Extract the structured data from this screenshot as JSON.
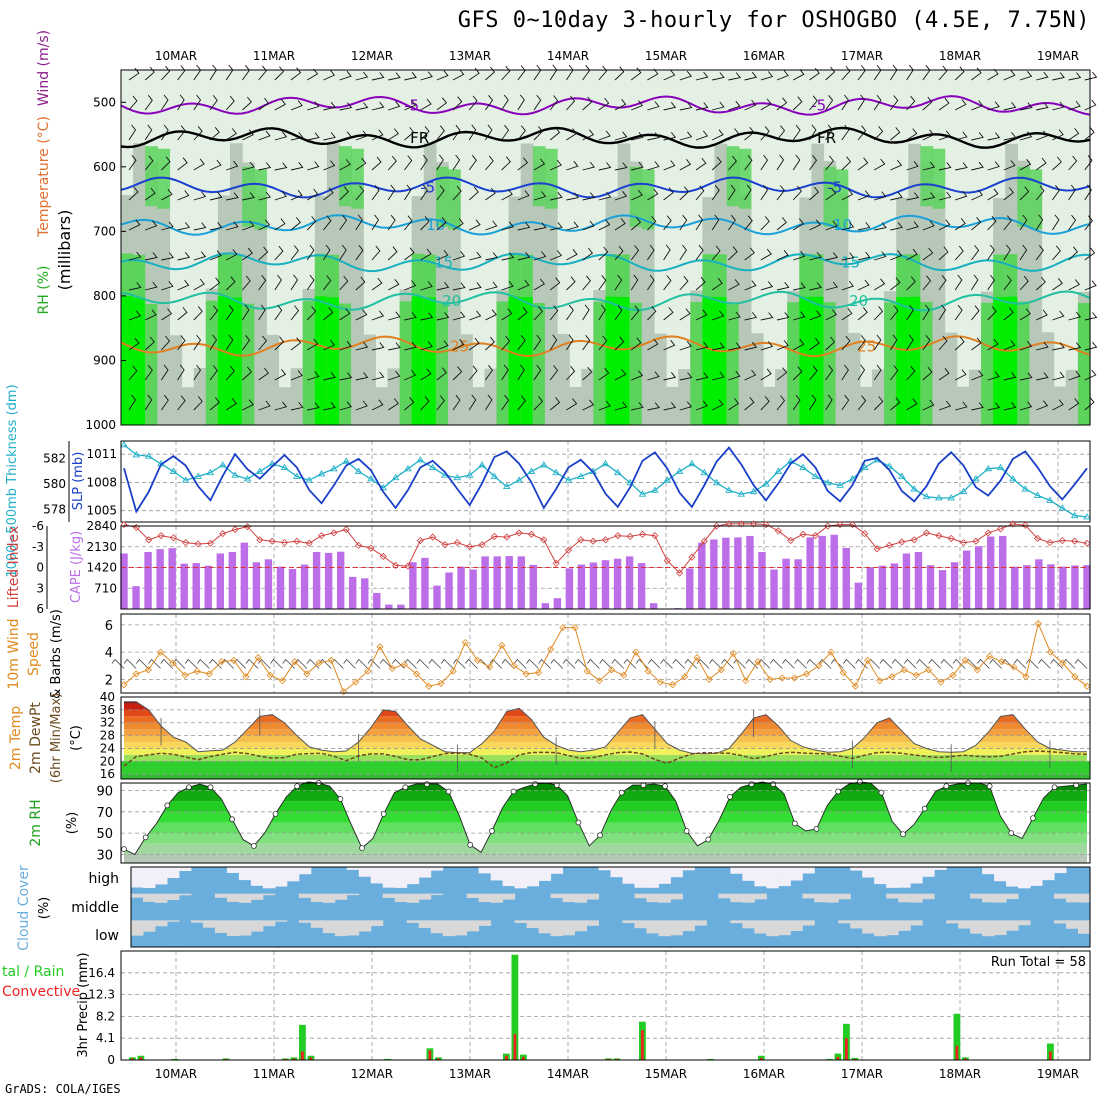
{
  "title": "GFS 0~10day 3-hourly for OSHOGBO (4.5E, 7.75N)",
  "credit": "GrADS: COLA/IGES",
  "colors": {
    "rh_light": "#e4f0e4",
    "rh_mid": "#b8c8b8",
    "rh_green": "#5cd45c",
    "rh_bright": "#00ee00",
    "purple": "#8800bb",
    "black": "#000000",
    "blue": "#1a40d0",
    "cyan": "#1aa0d8",
    "teal": "#20c0a0",
    "orange": "#e08020",
    "red": "#cc0000",
    "magenta": "#d0107a",
    "thick": "#20b0c8",
    "slp": "#1a3fc8",
    "lifted": "#d04040",
    "cape": "#bb6ee8",
    "wind10": "#e08a20",
    "cloud": "#6aaede",
    "cloud_empty": "#d8d8d8",
    "precip_total": "#22cc22",
    "precip_conv": "#ee2222"
  },
  "chart_data": [
    {
      "type": "heatmap",
      "id": "upper-air",
      "xlabel_top": [
        "10MAR",
        "11MAR",
        "12MAR",
        "13MAR",
        "14MAR",
        "15MAR",
        "16MAR",
        "17MAR",
        "18MAR",
        "19MAR"
      ],
      "ylabel_parts": [
        {
          "text": "RH (%)",
          "color": "#22aa22"
        },
        {
          "text": "Temperature (°C)",
          "color": "#e07030"
        },
        {
          "text": "Wind (m/s)",
          "color": "#8b1d8b"
        }
      ],
      "yaxis_title": "(millibars)",
      "y_ticks": [
        500,
        600,
        700,
        800,
        900,
        1000
      ],
      "ylim": [
        450,
        1000
      ],
      "isotherms": [
        {
          "label": "-5",
          "level": 505,
          "color": "#8800bb"
        },
        {
          "label": "FR",
          "level": 555,
          "color": "#000000"
        },
        {
          "label": "-5",
          "level": 632,
          "color": "#1a40d0"
        },
        {
          "label": "10",
          "level": 690,
          "color": "#1aa0d8"
        },
        {
          "label": "15",
          "level": 748,
          "color": "#17b0c0"
        },
        {
          "label": "20",
          "level": 808,
          "color": "#20c0a0"
        },
        {
          "label": "25",
          "level": 878,
          "color": "#e08020"
        }
      ],
      "contour_labels": [
        "-5",
        "FR",
        "-5",
        "10",
        "15",
        "20",
        "25"
      ]
    },
    {
      "type": "line",
      "id": "thickness-slp",
      "ylabel_left": "1000~500mb Thickness (dm)",
      "ylabel_right": "SLP (mb)",
      "left_ticks": [
        578,
        580,
        582
      ],
      "right_ticks": [
        1005,
        1008,
        1011
      ],
      "ylim_left": [
        577,
        583.4
      ],
      "ylim_right": [
        1003.8,
        1012.4
      ],
      "series": [
        {
          "id": "thickness",
          "values": [
            583.1,
            582.3,
            582.2,
            581.6,
            581.0,
            580.3,
            580.6,
            580.9,
            581.5,
            580.7,
            580.4,
            581.0,
            581.6,
            581.3,
            580.6,
            580.3,
            580.8,
            581.2,
            581.8,
            581.0,
            580.4,
            579.7,
            580.5,
            581.2,
            581.9,
            581.3,
            580.7,
            580.5,
            580.7,
            581.5,
            580.6,
            579.8,
            580.3,
            581.0,
            581.5,
            580.9,
            580.3,
            580.6,
            581.0,
            581.6,
            580.9,
            580.1,
            579.2,
            579.5,
            580.3,
            581.0,
            581.6,
            580.9,
            580.1,
            579.5,
            579.2,
            579.4,
            580.0,
            581.0,
            581.8,
            581.3,
            580.6,
            580.1,
            579.9,
            580.4,
            581.3,
            581.9,
            581.4,
            580.6,
            579.6,
            579.0,
            578.9,
            578.9,
            579.4,
            580.4,
            581.2,
            581.3,
            580.4,
            579.6,
            579.1,
            578.7,
            578.1,
            577.5,
            577.4
          ]
        },
        {
          "id": "slp",
          "values": [
            1009.5,
            1004.9,
            1007.0,
            1009.9,
            1010.8,
            1009.8,
            1007.6,
            1006.1,
            1008.7,
            1011.0,
            1009.4,
            1008.4,
            1009.7,
            1010.9,
            1009.6,
            1007.2,
            1005.8,
            1007.7,
            1009.8,
            1010.5,
            1009.3,
            1007.0,
            1005.3,
            1007.2,
            1009.6,
            1010.3,
            1009.1,
            1007.3,
            1005.6,
            1007.9,
            1010.7,
            1011.3,
            1010.0,
            1008.0,
            1005.3,
            1007.3,
            1009.6,
            1010.4,
            1009.1,
            1006.8,
            1005.4,
            1007.5,
            1010.3,
            1011.2,
            1009.5,
            1006.9,
            1005.4,
            1007.7,
            1010.2,
            1011.7,
            1009.9,
            1007.7,
            1006.1,
            1007.9,
            1010.0,
            1011.0,
            1009.6,
            1007.1,
            1006.0,
            1007.7,
            1010.3,
            1010.6,
            1009.3,
            1007.1,
            1006.0,
            1007.6,
            1010.0,
            1011.2,
            1009.8,
            1007.5,
            1006.6,
            1008.2,
            1010.5,
            1011.3,
            1009.6,
            1007.6,
            1006.2,
            1007.8,
            1009.5
          ]
        }
      ]
    },
    {
      "type": "bar",
      "id": "lifted-cape",
      "ylabel_left": "Lifted Index",
      "ylabel_right": "CAPE (J/kg)",
      "left_ticks": [
        "-6",
        "-3",
        "0",
        "3",
        "6"
      ],
      "right_ticks": [
        "2840",
        "2130",
        "1420",
        "710"
      ],
      "ylim_cape": [
        0,
        2840
      ],
      "ylim_li": [
        -6,
        6
      ],
      "cape": [
        1900,
        780,
        1950,
        2050,
        2080,
        1550,
        1570,
        1480,
        1900,
        1950,
        2270,
        1600,
        1700,
        1450,
        1370,
        1520,
        1950,
        1920,
        1960,
        1100,
        1050,
        550,
        150,
        150,
        1600,
        1750,
        800,
        1250,
        1450,
        1350,
        1800,
        1800,
        1810,
        1800,
        1510,
        200,
        370,
        1390,
        1520,
        1590,
        1670,
        1720,
        1800,
        1570,
        200,
        0,
        30,
        1390,
        2270,
        2380,
        2440,
        2450,
        2500,
        1950,
        1350,
        1720,
        1700,
        2450,
        2500,
        2540,
        2090,
        900,
        1420,
        1480,
        1560,
        1900,
        1950,
        1500,
        1330,
        1600,
        2000,
        2150,
        2480,
        2500,
        1450,
        1500,
        1700,
        1530,
        1450,
        1490,
        1500
      ],
      "lifted_index": [
        -6.2,
        -5.8,
        -4.0,
        -4.6,
        -4.3,
        -3.6,
        -3.4,
        -3.5,
        -4.9,
        -5.5,
        -5.9,
        -4.0,
        -3.8,
        -3.6,
        -3.8,
        -3.5,
        -4.6,
        -5.0,
        -5.5,
        -3.2,
        -2.8,
        -1.6,
        -0.3,
        -0.2,
        -3.9,
        -4.4,
        -3.3,
        -3.6,
        -3.0,
        -3.3,
        -4.5,
        -4.4,
        -5.0,
        -4.8,
        -4.0,
        -0.6,
        -2.5,
        -4.0,
        -3.8,
        -4.0,
        -4.6,
        -4.5,
        -4.8,
        -4.6,
        -1.0,
        0.8,
        -1.5,
        -3.8,
        -6.0,
        -6.3,
        -6.3,
        -6.3,
        -6.2,
        -5.3,
        -3.9,
        -4.8,
        -4.6,
        -6.0,
        -6.2,
        -6.2,
        -4.9,
        -2.7,
        -3.2,
        -3.7,
        -4.0,
        -5.0,
        -4.6,
        -4.2,
        -3.6,
        -3.8,
        -5.0,
        -5.6,
        -6.3,
        -6.1,
        -4.2,
        -3.6,
        -3.9,
        -3.8,
        -3.5
      ]
    },
    {
      "type": "line",
      "id": "wind10m",
      "ylabel": "10m Wind Speed & Barbs (m/s)",
      "y_ticks": [
        2,
        4,
        6
      ],
      "ylim": [
        1.0,
        6.8
      ],
      "values": [
        1.6,
        2.4,
        2.7,
        4.0,
        3.2,
        2.3,
        2.6,
        2.4,
        3.3,
        3.4,
        2.2,
        3.6,
        2.3,
        1.9,
        3.3,
        2.4,
        3.2,
        3.4,
        1.1,
        1.8,
        2.6,
        4.4,
        2.8,
        3.1,
        2.4,
        1.5,
        1.7,
        2.6,
        4.7,
        3.4,
        2.9,
        4.5,
        3.0,
        2.4,
        2.5,
        4.2,
        5.8,
        5.8,
        2.6,
        1.9,
        2.7,
        2.3,
        4.0,
        2.6,
        1.8,
        1.6,
        2.2,
        3.6,
        2.0,
        2.7,
        3.9,
        1.9,
        3.3,
        2.0,
        2.1,
        2.1,
        2.4,
        3.0,
        4.0,
        2.5,
        1.5,
        3.4,
        1.9,
        2.2,
        2.7,
        2.3,
        2.7,
        1.8,
        2.3,
        3.4,
        2.7,
        3.7,
        3.3,
        2.9,
        2.2,
        6.1,
        4.0,
        3.2,
        2.2,
        1.5
      ]
    },
    {
      "type": "area",
      "id": "temp2m",
      "ylabel": "2m Temp 2m DewPt (6hr Min/Max) (°C)",
      "y_ticks": [
        16,
        20,
        24,
        28,
        32,
        36,
        40
      ],
      "ylim": [
        14.5,
        40
      ],
      "temp": [
        38.5,
        38.5,
        36.0,
        31.0,
        27.5,
        26.0,
        23.0,
        23.3,
        23.5,
        26.0,
        30.0,
        34.0,
        34.5,
        32.0,
        28.0,
        24.5,
        23.5,
        23.0,
        23.2,
        26.0,
        30.5,
        36.0,
        35.5,
        31.0,
        27.0,
        25.0,
        23.0,
        22.7,
        22.7,
        25.5,
        29.5,
        35.5,
        36.5,
        33.0,
        27.5,
        25.0,
        23.5,
        23.0,
        23.5,
        24.5,
        29.0,
        33.5,
        34.5,
        30.0,
        25.5,
        23.5,
        22.5,
        22.3,
        22.5,
        24.0,
        28.5,
        33.5,
        34.5,
        31.0,
        26.5,
        24.5,
        23.5,
        22.8,
        23.0,
        24.0,
        27.5,
        32.0,
        33.5,
        29.5,
        25.5,
        24.0,
        23.0,
        22.8,
        23.0,
        25.0,
        29.0,
        34.0,
        34.5,
        30.0,
        26.0,
        24.0,
        23.5,
        23.0,
        23.0
      ],
      "dewpt": [
        18.5,
        21.5,
        22.0,
        22.5,
        22.2,
        21.3,
        20.5,
        21.5,
        22.2,
        22.8,
        22.4,
        21.6,
        21.0,
        21.2,
        22.2,
        22.4,
        22.5,
        21.6,
        20.2,
        21.7,
        22.3,
        22.3,
        21.5,
        20.5,
        20.5,
        21.5,
        22.4,
        22.6,
        22.2,
        21.0,
        18.0,
        19.5,
        22.0,
        22.7,
        22.8,
        22.7,
        21.8,
        20.9,
        21.2,
        22.0,
        22.7,
        22.9,
        22.3,
        20.6,
        19.4,
        21.0,
        22.3,
        22.7,
        22.6,
        22.5,
        21.8,
        20.8,
        21.5,
        22.4,
        22.8,
        22.6,
        22.4,
        22.3,
        21.6,
        20.9,
        21.9,
        22.7,
        22.8,
        22.5,
        22.0,
        21.5,
        21.2,
        21.5,
        21.9,
        21.6,
        21.4,
        21.6,
        22.3,
        23.0,
        23.2,
        23.0,
        22.7,
        22.3,
        22.2
      ]
    },
    {
      "type": "area",
      "id": "rh2m",
      "ylabel": "2m RH (%)",
      "y_ticks": [
        30,
        50,
        70,
        90
      ],
      "ylim": [
        22,
        97
      ],
      "values": [
        35,
        30,
        46,
        59,
        76,
        88,
        93,
        96,
        93,
        82,
        63,
        44,
        38,
        50,
        68,
        84,
        94,
        98,
        97,
        94,
        82,
        58,
        36,
        45,
        68,
        88,
        93,
        96,
        96,
        96,
        89,
        66,
        39,
        32,
        52,
        74,
        89,
        93,
        96,
        97,
        95,
        85,
        60,
        38,
        48,
        71,
        88,
        95,
        95,
        96,
        94,
        80,
        52,
        38,
        44,
        62,
        84,
        93,
        96,
        98,
        96,
        87,
        59,
        52,
        54,
        76,
        89,
        96,
        98,
        97,
        88,
        61,
        49,
        58,
        73,
        89,
        94,
        96,
        97,
        97,
        94,
        66,
        50,
        45,
        64,
        83,
        93,
        94,
        95,
        96
      ]
    },
    {
      "type": "heatmap",
      "id": "cloud",
      "ylabel": "Cloud Cover (%)",
      "rows": [
        "high",
        "middle",
        "low"
      ]
    },
    {
      "type": "bar",
      "id": "precip",
      "ylabel_left": "Total / Rain Convective",
      "ylabel": "3hr Precip (mm)",
      "y_ticks": [
        "0",
        "4.1",
        "8.2",
        "12.3",
        "16.4"
      ],
      "ylim": [
        0,
        20.5
      ],
      "annotation": "Run Total = 58",
      "xlabel_bottom": [
        "10MAR",
        "11MAR",
        "12MAR",
        "13MAR",
        "14MAR",
        "15MAR",
        "16MAR",
        "17MAR",
        "18MAR",
        "19MAR"
      ],
      "total": [
        0.5,
        0.8,
        0.0,
        0.0,
        0.0,
        0.2,
        0.0,
        0.0,
        0.0,
        0.0,
        0.0,
        0.3,
        0.0,
        0.0,
        0.0,
        0.0,
        0.0,
        0.0,
        0.3,
        0.5,
        6.6,
        0.8,
        0.0,
        0.0,
        0.0,
        0.0,
        0.0,
        0.0,
        0.0,
        0.0,
        0.2,
        0.0,
        0.0,
        0.0,
        0.0,
        2.2,
        0.5,
        0.0,
        0.0,
        0.0,
        0.0,
        0.0,
        0.0,
        0.0,
        1.2,
        19.8,
        1.0,
        0.0,
        0.0,
        0.0,
        0.0,
        0.0,
        0.0,
        0.0,
        0.0,
        0.0,
        0.3,
        0.3,
        0.0,
        0.0,
        7.2,
        0.0,
        0.0,
        0.0,
        0.0,
        0.0,
        0.0,
        0.0,
        0.2,
        0.0,
        0.0,
        0.0,
        0.0,
        0.0,
        0.8,
        0.0,
        0.0,
        0.0,
        0.0,
        0.0,
        0.0,
        0.0,
        0.2,
        1.2,
        6.8,
        0.4,
        0.0,
        0.0,
        0.0,
        0.0,
        0.0,
        0.0,
        0.0,
        0.0,
        0.0,
        0.0,
        0.0,
        8.7,
        0.5,
        0.0,
        0.0,
        0.0,
        0.0,
        0.0,
        0.0,
        0.0,
        0.0,
        0.0,
        3.1,
        0.0,
        0.0,
        0.0,
        0.0,
        0.0
      ],
      "convective": [
        0.3,
        0.5,
        0,
        0,
        0,
        0.1,
        0,
        0,
        0,
        0,
        0,
        0.2,
        0,
        0,
        0,
        0,
        0,
        0,
        0.2,
        0.3,
        1.6,
        0.5,
        0,
        0,
        0,
        0,
        0,
        0,
        0,
        0,
        0.1,
        0,
        0,
        0,
        0,
        1.8,
        0.3,
        0,
        0,
        0,
        0,
        0,
        0,
        0,
        0.8,
        4.9,
        0.6,
        0,
        0,
        0,
        0,
        0,
        0,
        0,
        0,
        0,
        0.2,
        0.2,
        0,
        0,
        5.6,
        0,
        0,
        0,
        0,
        0,
        0,
        0,
        0.1,
        0,
        0,
        0,
        0,
        0,
        0.4,
        0,
        0,
        0,
        0,
        0,
        0,
        0,
        0.1,
        0.6,
        4.1,
        0.2,
        0,
        0,
        0,
        0,
        0,
        0,
        0,
        0,
        0,
        0,
        0,
        2.7,
        0.3,
        0,
        0,
        0,
        0,
        0,
        0,
        0,
        0,
        0,
        1.6,
        0,
        0,
        0,
        0,
        0
      ]
    }
  ]
}
